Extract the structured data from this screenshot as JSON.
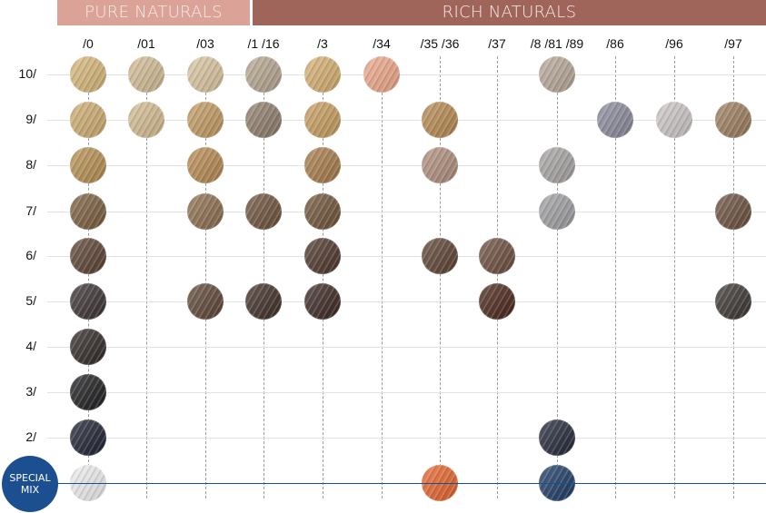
{
  "header": {
    "pure_naturals": "PURE NATURALS",
    "rich_naturals": "RICH NATURALS",
    "pure_color": "#dba298",
    "rich_color": "#a0655a"
  },
  "columns": [
    "/0",
    "/01",
    "/03",
    "/1 /16",
    "/3",
    "/34",
    "/35 /36",
    "/37",
    "/8 /81 /89",
    "/86",
    "/96",
    "/97"
  ],
  "rows": [
    "10/",
    "9/",
    "8/",
    "7/",
    "6/",
    "5/",
    "4/",
    "3/",
    "2/"
  ],
  "special": {
    "label_line1": "SPECIAL",
    "label_line2": "MIX",
    "color": "#1c4f8f"
  },
  "swatches": [
    {
      "row": "10/",
      "col": "/0",
      "color": "#d9b878"
    },
    {
      "row": "10/",
      "col": "/01",
      "color": "#d4bd94"
    },
    {
      "row": "10/",
      "col": "/03",
      "color": "#dcc7a0"
    },
    {
      "row": "10/",
      "col": "/1 /16",
      "color": "#b8a690"
    },
    {
      "row": "10/",
      "col": "/3",
      "color": "#d8b070"
    },
    {
      "row": "10/",
      "col": "/34",
      "color": "#f0a888"
    },
    {
      "row": "10/",
      "col": "/8 /81 /89",
      "color": "#b8a898"
    },
    {
      "row": "9/",
      "col": "/0",
      "color": "#d0ad70"
    },
    {
      "row": "9/",
      "col": "/01",
      "color": "#d6bd90"
    },
    {
      "row": "9/",
      "col": "/03",
      "color": "#c49a60"
    },
    {
      "row": "9/",
      "col": "/1 /16",
      "color": "#8e7c6a"
    },
    {
      "row": "9/",
      "col": "/3",
      "color": "#c89e5c"
    },
    {
      "row": "9/",
      "col": "/35 /36",
      "color": "#b8894f"
    },
    {
      "row": "9/",
      "col": "/86",
      "color": "#8a8a9c"
    },
    {
      "row": "9/",
      "col": "/96",
      "color": "#cfc8c8"
    },
    {
      "row": "9/",
      "col": "/97",
      "color": "#9c7c5c"
    },
    {
      "row": "8/",
      "col": "/0",
      "color": "#b8904f"
    },
    {
      "row": "8/",
      "col": "/03",
      "color": "#b8894f"
    },
    {
      "row": "8/",
      "col": "/3",
      "color": "#a87a48"
    },
    {
      "row": "8/",
      "col": "/35 /36",
      "color": "#b08e7c"
    },
    {
      "row": "8/",
      "col": "/8 /81 /89",
      "color": "#a8a4a4"
    },
    {
      "row": "7/",
      "col": "/0",
      "color": "#7a5c3c"
    },
    {
      "row": "7/",
      "col": "/03",
      "color": "#8c6c4c"
    },
    {
      "row": "7/",
      "col": "/1 /16",
      "color": "#6c5038"
    },
    {
      "row": "7/",
      "col": "/3",
      "color": "#6e5236"
    },
    {
      "row": "7/",
      "col": "/8 /81 /89",
      "color": "#a0a0a4"
    },
    {
      "row": "7/",
      "col": "/97",
      "color": "#6a4e3c"
    },
    {
      "row": "6/",
      "col": "/0",
      "color": "#5a4030"
    },
    {
      "row": "6/",
      "col": "/3",
      "color": "#4c3428"
    },
    {
      "row": "6/",
      "col": "/35 /36",
      "color": "#5c4030"
    },
    {
      "row": "6/",
      "col": "/37",
      "color": "#6c4c3c"
    },
    {
      "row": "5/",
      "col": "/0",
      "color": "#3a3030"
    },
    {
      "row": "5/",
      "col": "/03",
      "color": "#5c4434"
    },
    {
      "row": "5/",
      "col": "/1 /16",
      "color": "#3e2c24"
    },
    {
      "row": "5/",
      "col": "/3",
      "color": "#3a2620"
    },
    {
      "row": "5/",
      "col": "/37",
      "color": "#4a2418"
    },
    {
      "row": "5/",
      "col": "/97",
      "color": "#3a3430"
    },
    {
      "row": "4/",
      "col": "/0",
      "color": "#2e2624"
    },
    {
      "row": "3/",
      "col": "/0",
      "color": "#1c1c1e"
    },
    {
      "row": "2/",
      "col": "/0",
      "color": "#1c2030"
    },
    {
      "row": "2/",
      "col": "/8 /81 /89",
      "color": "#222638"
    },
    {
      "row": "SPECIAL MIX",
      "col": "/0",
      "color": "#f0f0f0"
    },
    {
      "row": "SPECIAL MIX",
      "col": "/35 /36",
      "color": "#e8642a"
    },
    {
      "row": "SPECIAL MIX",
      "col": "/8 /81 /89",
      "color": "#1c3a64"
    }
  ]
}
